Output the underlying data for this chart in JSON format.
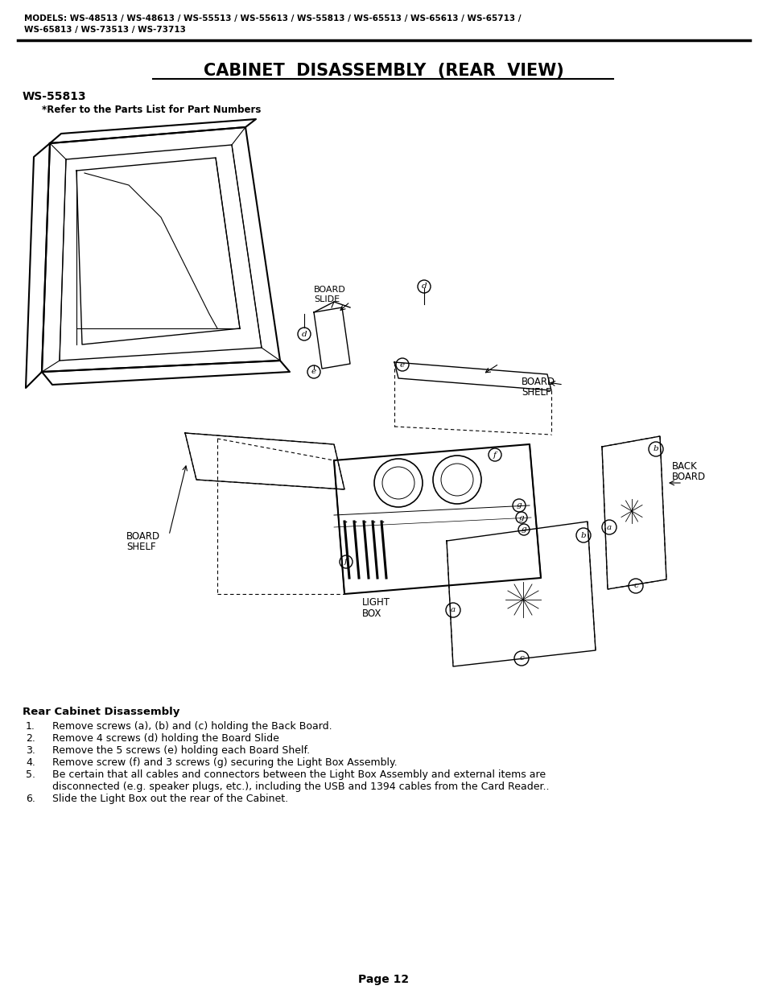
{
  "bg_color": "#ffffff",
  "page_width": 9.54,
  "page_height": 12.35,
  "header_models_line1": "MODELS: WS-48513 / WS-48613 / WS-55513 / WS-55613 / WS-55813 / WS-65513 / WS-65613 / WS-65713 /",
  "header_models_line2": "WS-65813 / WS-73513 / WS-73713",
  "title": "CABINET  DISASSEMBLY  (REAR  VIEW)",
  "model_label": "WS-55813",
  "parts_ref": "*Refer to the Parts List for Part Numbers",
  "section_heading": "Rear Cabinet Disassembly",
  "steps": [
    "Remove screws (a), (b) and (c) holding the Back Board.",
    "Remove 4 screws (d) holding the Board Slide",
    "Remove the 5 screws (e) holding each Board Shelf.",
    "Remove screw (f) and 3 screws (g) securing the Light Box Assembly.",
    "Be certain that all cables and connectors between the Light Box Assembly and external items are",
    "disconnected (e.g. speaker plugs, etc.), including the USB and 1394 cables from the Card Reader..",
    "Slide the Light Box out the rear of the Cabinet."
  ],
  "step_numbers": [
    1,
    2,
    3,
    4,
    5,
    5,
    6
  ],
  "step_indent": [
    false,
    false,
    false,
    false,
    false,
    true,
    false
  ],
  "page_num": "Page 12"
}
